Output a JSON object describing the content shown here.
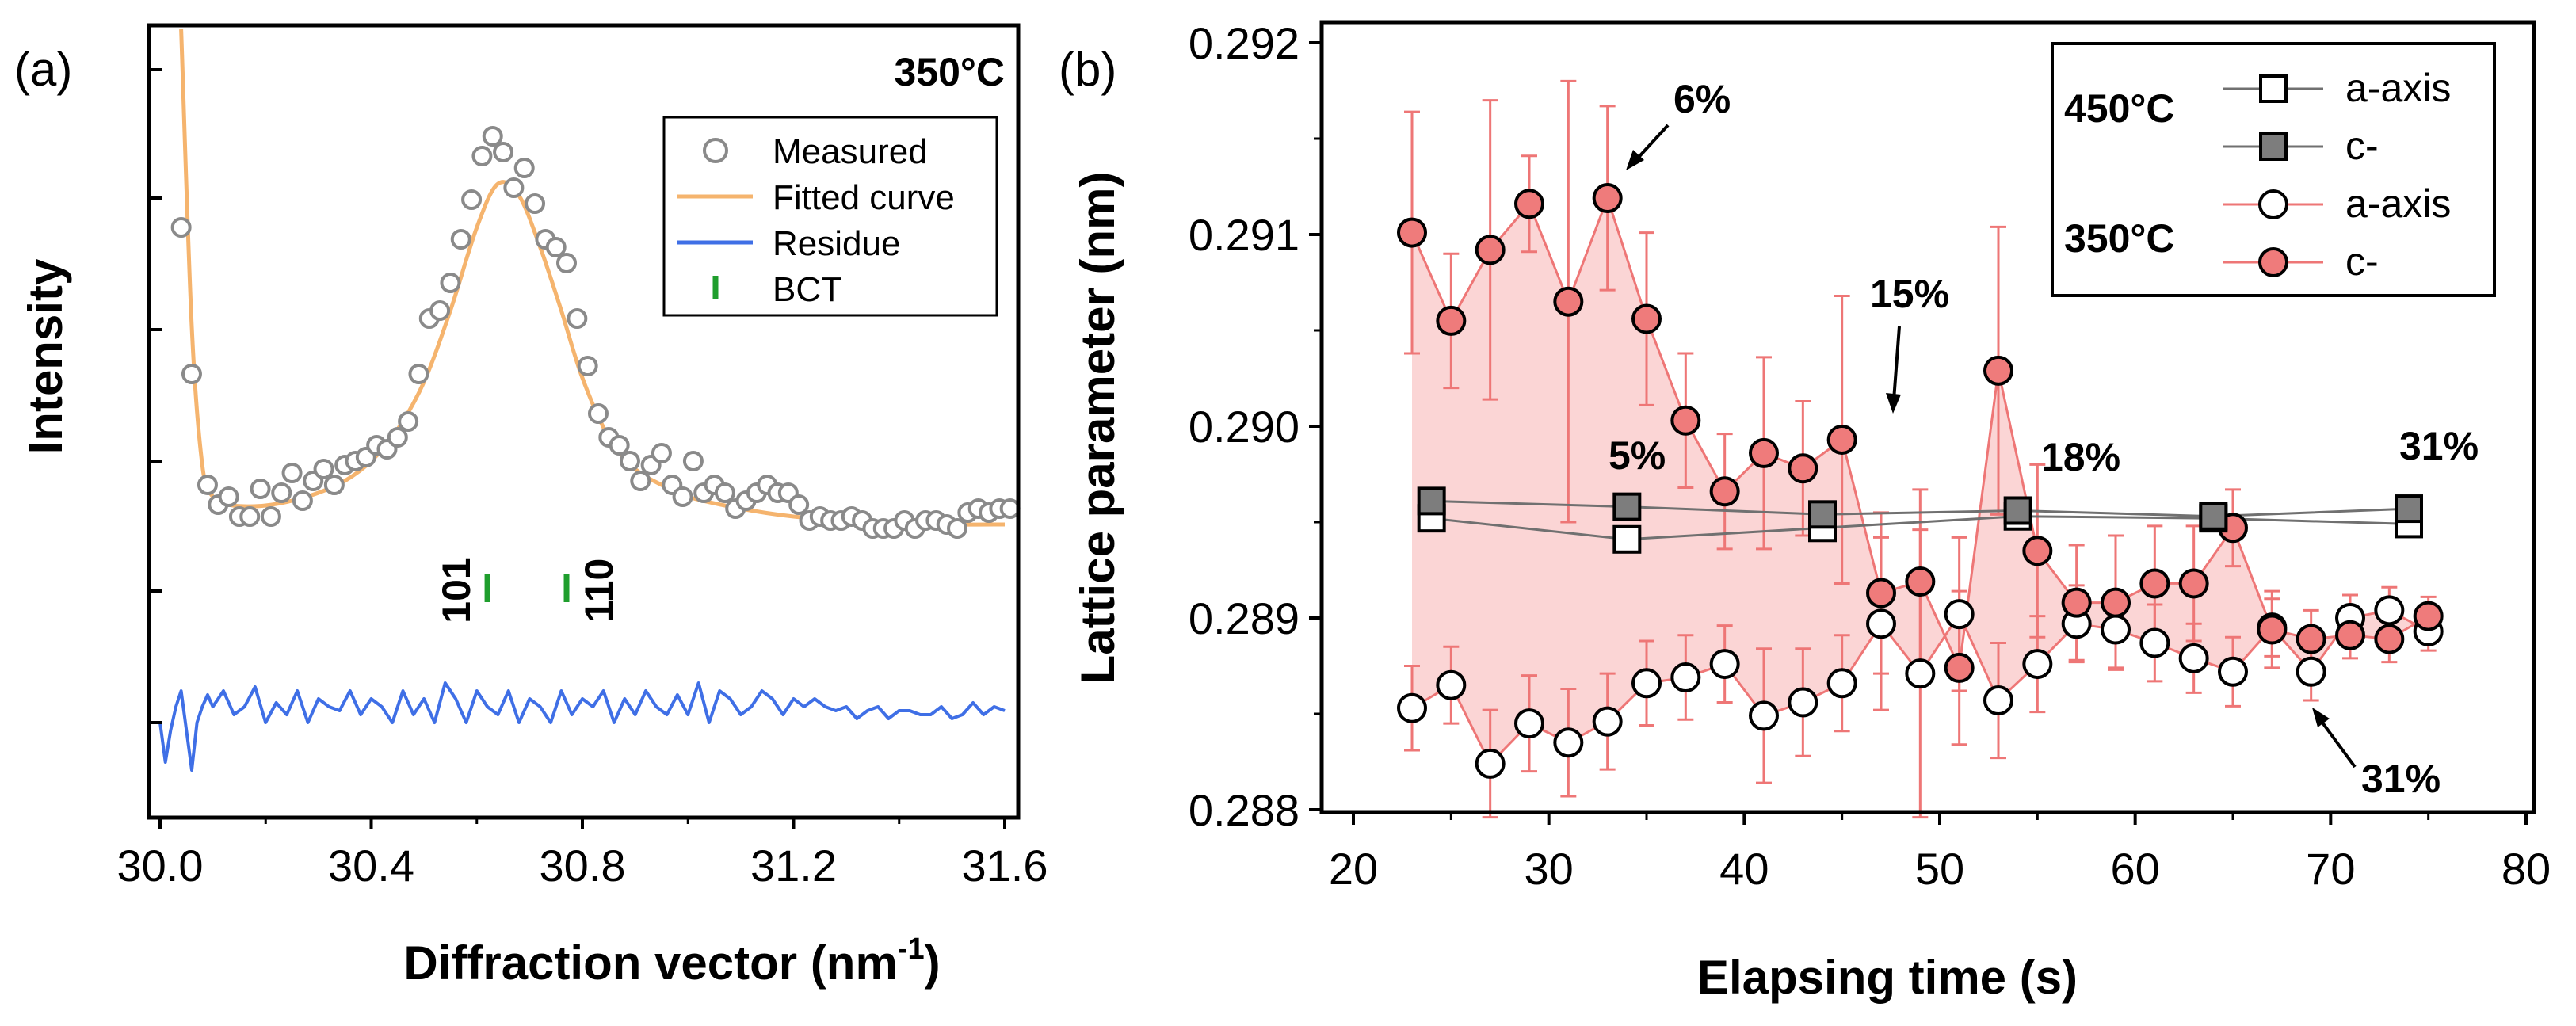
{
  "chart_data": [
    {
      "panel": "(a)",
      "type": "scatter",
      "xlabel": "Diffraction vector (nm",
      "xlabel_sup": "-1",
      "xlabel_end": ")",
      "ylabel": "Intensity",
      "corner_label": "350°C",
      "xlim": [
        30.0,
        31.6
      ],
      "ylim": [
        0,
        1
      ],
      "x_ticks": [
        "30.0",
        "30.4",
        "30.8",
        "31.2",
        "31.6"
      ],
      "legend": {
        "position": "top-right",
        "items": [
          "Measured",
          "Fitted curve",
          "Residue",
          "BCT"
        ]
      },
      "bct_peaks": [
        {
          "label": "101",
          "x": 30.62
        },
        {
          "label": "110",
          "x": 30.77
        }
      ],
      "measured": {
        "x": [
          30.04,
          30.06,
          30.09,
          30.11,
          30.13,
          30.15,
          30.17,
          30.19,
          30.21,
          30.23,
          30.25,
          30.27,
          30.29,
          30.31,
          30.33,
          30.35,
          30.37,
          30.39,
          30.41,
          30.43,
          30.45,
          30.47,
          30.49,
          30.51,
          30.53,
          30.55,
          30.57,
          30.59,
          30.61,
          30.63,
          30.65,
          30.67,
          30.69,
          30.71,
          30.73,
          30.75,
          30.77,
          30.79,
          30.81,
          30.83,
          30.85,
          30.87,
          30.89,
          30.91,
          30.93,
          30.95,
          30.97,
          30.99,
          31.01,
          31.03,
          31.05,
          31.07,
          31.09,
          31.11,
          31.13,
          31.15,
          31.17,
          31.19,
          31.21,
          31.23,
          31.25,
          31.27,
          31.29,
          31.31,
          31.33,
          31.35,
          31.37,
          31.39,
          31.41,
          31.43,
          31.45,
          31.47,
          31.49,
          31.51,
          31.53,
          31.55,
          31.57,
          31.59,
          31.61
        ],
        "y": [
          0.745,
          0.56,
          0.42,
          0.395,
          0.405,
          0.38,
          0.38,
          0.415,
          0.38,
          0.41,
          0.435,
          0.4,
          0.425,
          0.44,
          0.42,
          0.445,
          0.45,
          0.455,
          0.47,
          0.465,
          0.48,
          0.5,
          0.56,
          0.63,
          0.64,
          0.675,
          0.73,
          0.78,
          0.835,
          0.86,
          0.84,
          0.795,
          0.82,
          0.775,
          0.73,
          0.72,
          0.7,
          0.63,
          0.57,
          0.51,
          0.48,
          0.47,
          0.45,
          0.425,
          0.445,
          0.46,
          0.42,
          0.405,
          0.45,
          0.41,
          0.42,
          0.41,
          0.39,
          0.4,
          0.41,
          0.42,
          0.41,
          0.41,
          0.395,
          0.375,
          0.38,
          0.375,
          0.375,
          0.38,
          0.375,
          0.365,
          0.365,
          0.365,
          0.375,
          0.365,
          0.375,
          0.375,
          0.37,
          0.365,
          0.385,
          0.39,
          0.385,
          0.39,
          0.39
        ]
      },
      "fitted": {
        "x": [
          30.04,
          30.06,
          30.08,
          30.1,
          30.13,
          30.16,
          30.2,
          30.25,
          30.3,
          30.35,
          30.4,
          30.45,
          30.5,
          30.55,
          30.6,
          30.64,
          30.68,
          30.72,
          30.76,
          30.8,
          30.85,
          30.9,
          30.95,
          31.0,
          31.1,
          31.2,
          31.3,
          31.4,
          31.5,
          31.6
        ],
        "y": [
          0.995,
          0.62,
          0.445,
          0.405,
          0.395,
          0.393,
          0.394,
          0.4,
          0.41,
          0.425,
          0.45,
          0.49,
          0.55,
          0.64,
          0.745,
          0.8,
          0.785,
          0.72,
          0.64,
          0.555,
          0.48,
          0.44,
          0.42,
          0.405,
          0.39,
          0.38,
          0.375,
          0.372,
          0.37,
          0.37
        ]
      },
      "residue": {
        "x": [
          30.0,
          30.01,
          30.02,
          30.03,
          30.04,
          30.05,
          30.06,
          30.07,
          30.08,
          30.09,
          30.1,
          30.12,
          30.14,
          30.16,
          30.18,
          30.2,
          30.22,
          30.24,
          30.26,
          30.28,
          30.3,
          30.32,
          30.34,
          30.36,
          30.38,
          30.4,
          30.42,
          30.44,
          30.46,
          30.48,
          30.5,
          30.52,
          30.54,
          30.56,
          30.58,
          30.6,
          30.62,
          30.64,
          30.66,
          30.68,
          30.7,
          30.72,
          30.74,
          30.76,
          30.78,
          30.8,
          30.82,
          30.84,
          30.86,
          30.88,
          30.9,
          30.92,
          30.94,
          30.96,
          30.98,
          31.0,
          31.02,
          31.04,
          31.06,
          31.08,
          31.1,
          31.12,
          31.14,
          31.16,
          31.18,
          31.2,
          31.22,
          31.24,
          31.26,
          31.28,
          31.3,
          31.32,
          31.34,
          31.36,
          31.38,
          31.4,
          31.42,
          31.44,
          31.46,
          31.48,
          31.5,
          31.52,
          31.54,
          31.56,
          31.58,
          31.6
        ],
        "y": [
          0.12,
          0.07,
          0.11,
          0.14,
          0.16,
          0.11,
          0.06,
          0.12,
          0.14,
          0.155,
          0.14,
          0.16,
          0.13,
          0.14,
          0.165,
          0.12,
          0.145,
          0.13,
          0.16,
          0.12,
          0.15,
          0.14,
          0.135,
          0.16,
          0.13,
          0.15,
          0.14,
          0.12,
          0.16,
          0.13,
          0.15,
          0.12,
          0.17,
          0.15,
          0.12,
          0.16,
          0.14,
          0.13,
          0.16,
          0.12,
          0.15,
          0.14,
          0.12,
          0.16,
          0.13,
          0.15,
          0.14,
          0.16,
          0.12,
          0.15,
          0.13,
          0.16,
          0.14,
          0.13,
          0.155,
          0.13,
          0.17,
          0.12,
          0.16,
          0.15,
          0.13,
          0.14,
          0.16,
          0.15,
          0.13,
          0.15,
          0.14,
          0.15,
          0.14,
          0.135,
          0.14,
          0.125,
          0.135,
          0.14,
          0.125,
          0.135,
          0.135,
          0.13,
          0.13,
          0.14,
          0.125,
          0.13,
          0.145,
          0.13,
          0.14,
          0.135
        ]
      }
    },
    {
      "panel": "(b)",
      "type": "scatter",
      "xlabel": "Elapsing time (s)",
      "ylabel": "Lattice parameter (nm)",
      "xlim": [
        20,
        80
      ],
      "ylim": [
        0.28797,
        0.29205
      ],
      "x_ticks": [
        20,
        30,
        40,
        50,
        60,
        70,
        80
      ],
      "y_ticks": [
        0.288,
        0.289,
        0.29,
        0.291,
        0.292
      ],
      "y_tick_labels": [
        "0.288",
        "0.289",
        "0.290",
        "0.291",
        "0.292"
      ],
      "legend": {
        "position": "top-right",
        "group1": "450°C",
        "group2": "350°C",
        "labels": [
          "a-axis",
          "c-",
          "a-axis",
          "c-"
        ]
      },
      "annotations": [
        "6%",
        "15%",
        "5%",
        "18%",
        "31%",
        "31%"
      ],
      "series": [
        {
          "name": "450°C a-axis",
          "x": [
            24,
            34,
            44,
            54,
            64,
            74
          ],
          "y": [
            0.28952,
            0.28941,
            0.28947,
            0.28953,
            0.28952,
            0.28949
          ]
        },
        {
          "name": "450°C c-",
          "x": [
            24,
            34,
            44,
            54,
            64,
            74
          ],
          "y": [
            0.28961,
            0.28958,
            0.28954,
            0.28956,
            0.28953,
            0.28957
          ]
        },
        {
          "name": "350°C a-axis",
          "x": [
            23,
            25,
            27,
            29,
            31,
            33,
            35,
            37,
            39,
            41,
            43,
            45,
            47,
            49,
            51,
            53,
            55,
            57,
            59,
            61,
            63,
            65,
            67,
            69,
            71,
            73,
            75
          ],
          "y": [
            0.28853,
            0.28865,
            0.28824,
            0.28845,
            0.28835,
            0.28846,
            0.28866,
            0.28869,
            0.28876,
            0.28849,
            0.28856,
            0.28866,
            0.28897,
            0.28871,
            0.28902,
            0.28857,
            0.28876,
            0.28897,
            0.28894,
            0.28887,
            0.28879,
            0.28872,
            0.28895,
            0.28872,
            0.289,
            0.28904,
            0.28893
          ],
          "err": [
            0.00022,
            0.0002,
            0.00028,
            0.00025,
            0.00028,
            0.00025,
            0.00022,
            0.00022,
            0.0002,
            0.00035,
            0.00028,
            0.00025,
            0.00045,
            0.00075,
            0.0004,
            0.0003,
            0.00025,
            0.0002,
            0.0002,
            0.0002,
            0.00018,
            0.00018,
            0.00015,
            0.00015,
            0.00012,
            0.00012,
            0.0001
          ]
        },
        {
          "name": "350°C c-",
          "x": [
            23,
            25,
            27,
            29,
            31,
            33,
            35,
            37,
            39,
            41,
            43,
            45,
            47,
            49,
            51,
            53,
            55,
            57,
            59,
            61,
            63,
            65,
            67,
            69,
            71,
            73,
            75
          ],
          "y": [
            0.29101,
            0.29055,
            0.29092,
            0.29116,
            0.29065,
            0.29119,
            0.29056,
            0.29003,
            0.28966,
            0.28986,
            0.28978,
            0.28993,
            0.28913,
            0.28919,
            0.28874,
            0.29029,
            0.28935,
            0.28908,
            0.28908,
            0.28918,
            0.28918,
            0.28947,
            0.28894,
            0.28889,
            0.28891,
            0.28889,
            0.28901
          ],
          "err": [
            0.00063,
            0.00035,
            0.00078,
            0.00025,
            0.00115,
            0.00048,
            0.00045,
            0.00035,
            0.0003,
            0.0005,
            0.00035,
            0.00075,
            0.00042,
            0.00048,
            0.0004,
            0.00075,
            0.00045,
            0.0003,
            0.00035,
            0.0003,
            0.0003,
            0.0002,
            0.0002,
            0.00015,
            0.00012,
            0.00012,
            0.0001
          ]
        }
      ]
    }
  ],
  "colors": {
    "measured": "#8a8a8a",
    "fitted": "#f5b46e",
    "residue": "#3f6fe6",
    "bct": "#1f9e2d",
    "red_marker": "#ef7b7b",
    "red_line": "#ee7676",
    "red_fill": "#fbd5d5",
    "gray_marker": "#7d7d7d",
    "gray_line": "#707070"
  }
}
